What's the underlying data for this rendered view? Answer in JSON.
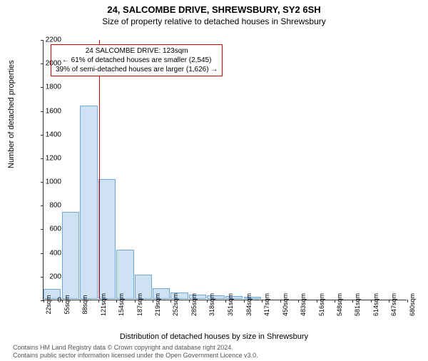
{
  "title_main": "24, SALCOMBE DRIVE, SHREWSBURY, SY2 6SH",
  "title_sub": "Size of property relative to detached houses in Shrewsbury",
  "ylabel": "Number of detached properties",
  "xlabel": "Distribution of detached houses by size in Shrewsbury",
  "chart": {
    "type": "histogram",
    "y": {
      "min": 0,
      "max": 2200,
      "step": 200
    },
    "x": {
      "ticks": [
        22,
        55,
        88,
        121,
        154,
        187,
        219,
        252,
        285,
        318,
        351,
        384,
        417,
        450,
        483,
        516,
        548,
        581,
        614,
        647,
        680
      ],
      "suffix": "sqm"
    },
    "bars": {
      "values": [
        90,
        740,
        1640,
        1020,
        420,
        210,
        95,
        60,
        45,
        38,
        30,
        25
      ],
      "color_fill": "#cfe2f3",
      "color_stroke": "#6fa8dc",
      "width_frac": 0.048
    },
    "reference_line": {
      "x_value": 123,
      "color": "#cc0000"
    },
    "annotation": {
      "lines": [
        "24 SALCOMBE DRIVE: 123sqm",
        "← 61% of detached houses are smaller (2,545)",
        "39% of semi-detached houses are larger (1,626) →"
      ],
      "border_color": "#cc0000"
    },
    "background": "#ffffff"
  },
  "footer": {
    "line1": "Contains HM Land Registry data © Crown copyright and database right 2024.",
    "line2": "Contains public sector information licensed under the Open Government Licence v3.0."
  }
}
